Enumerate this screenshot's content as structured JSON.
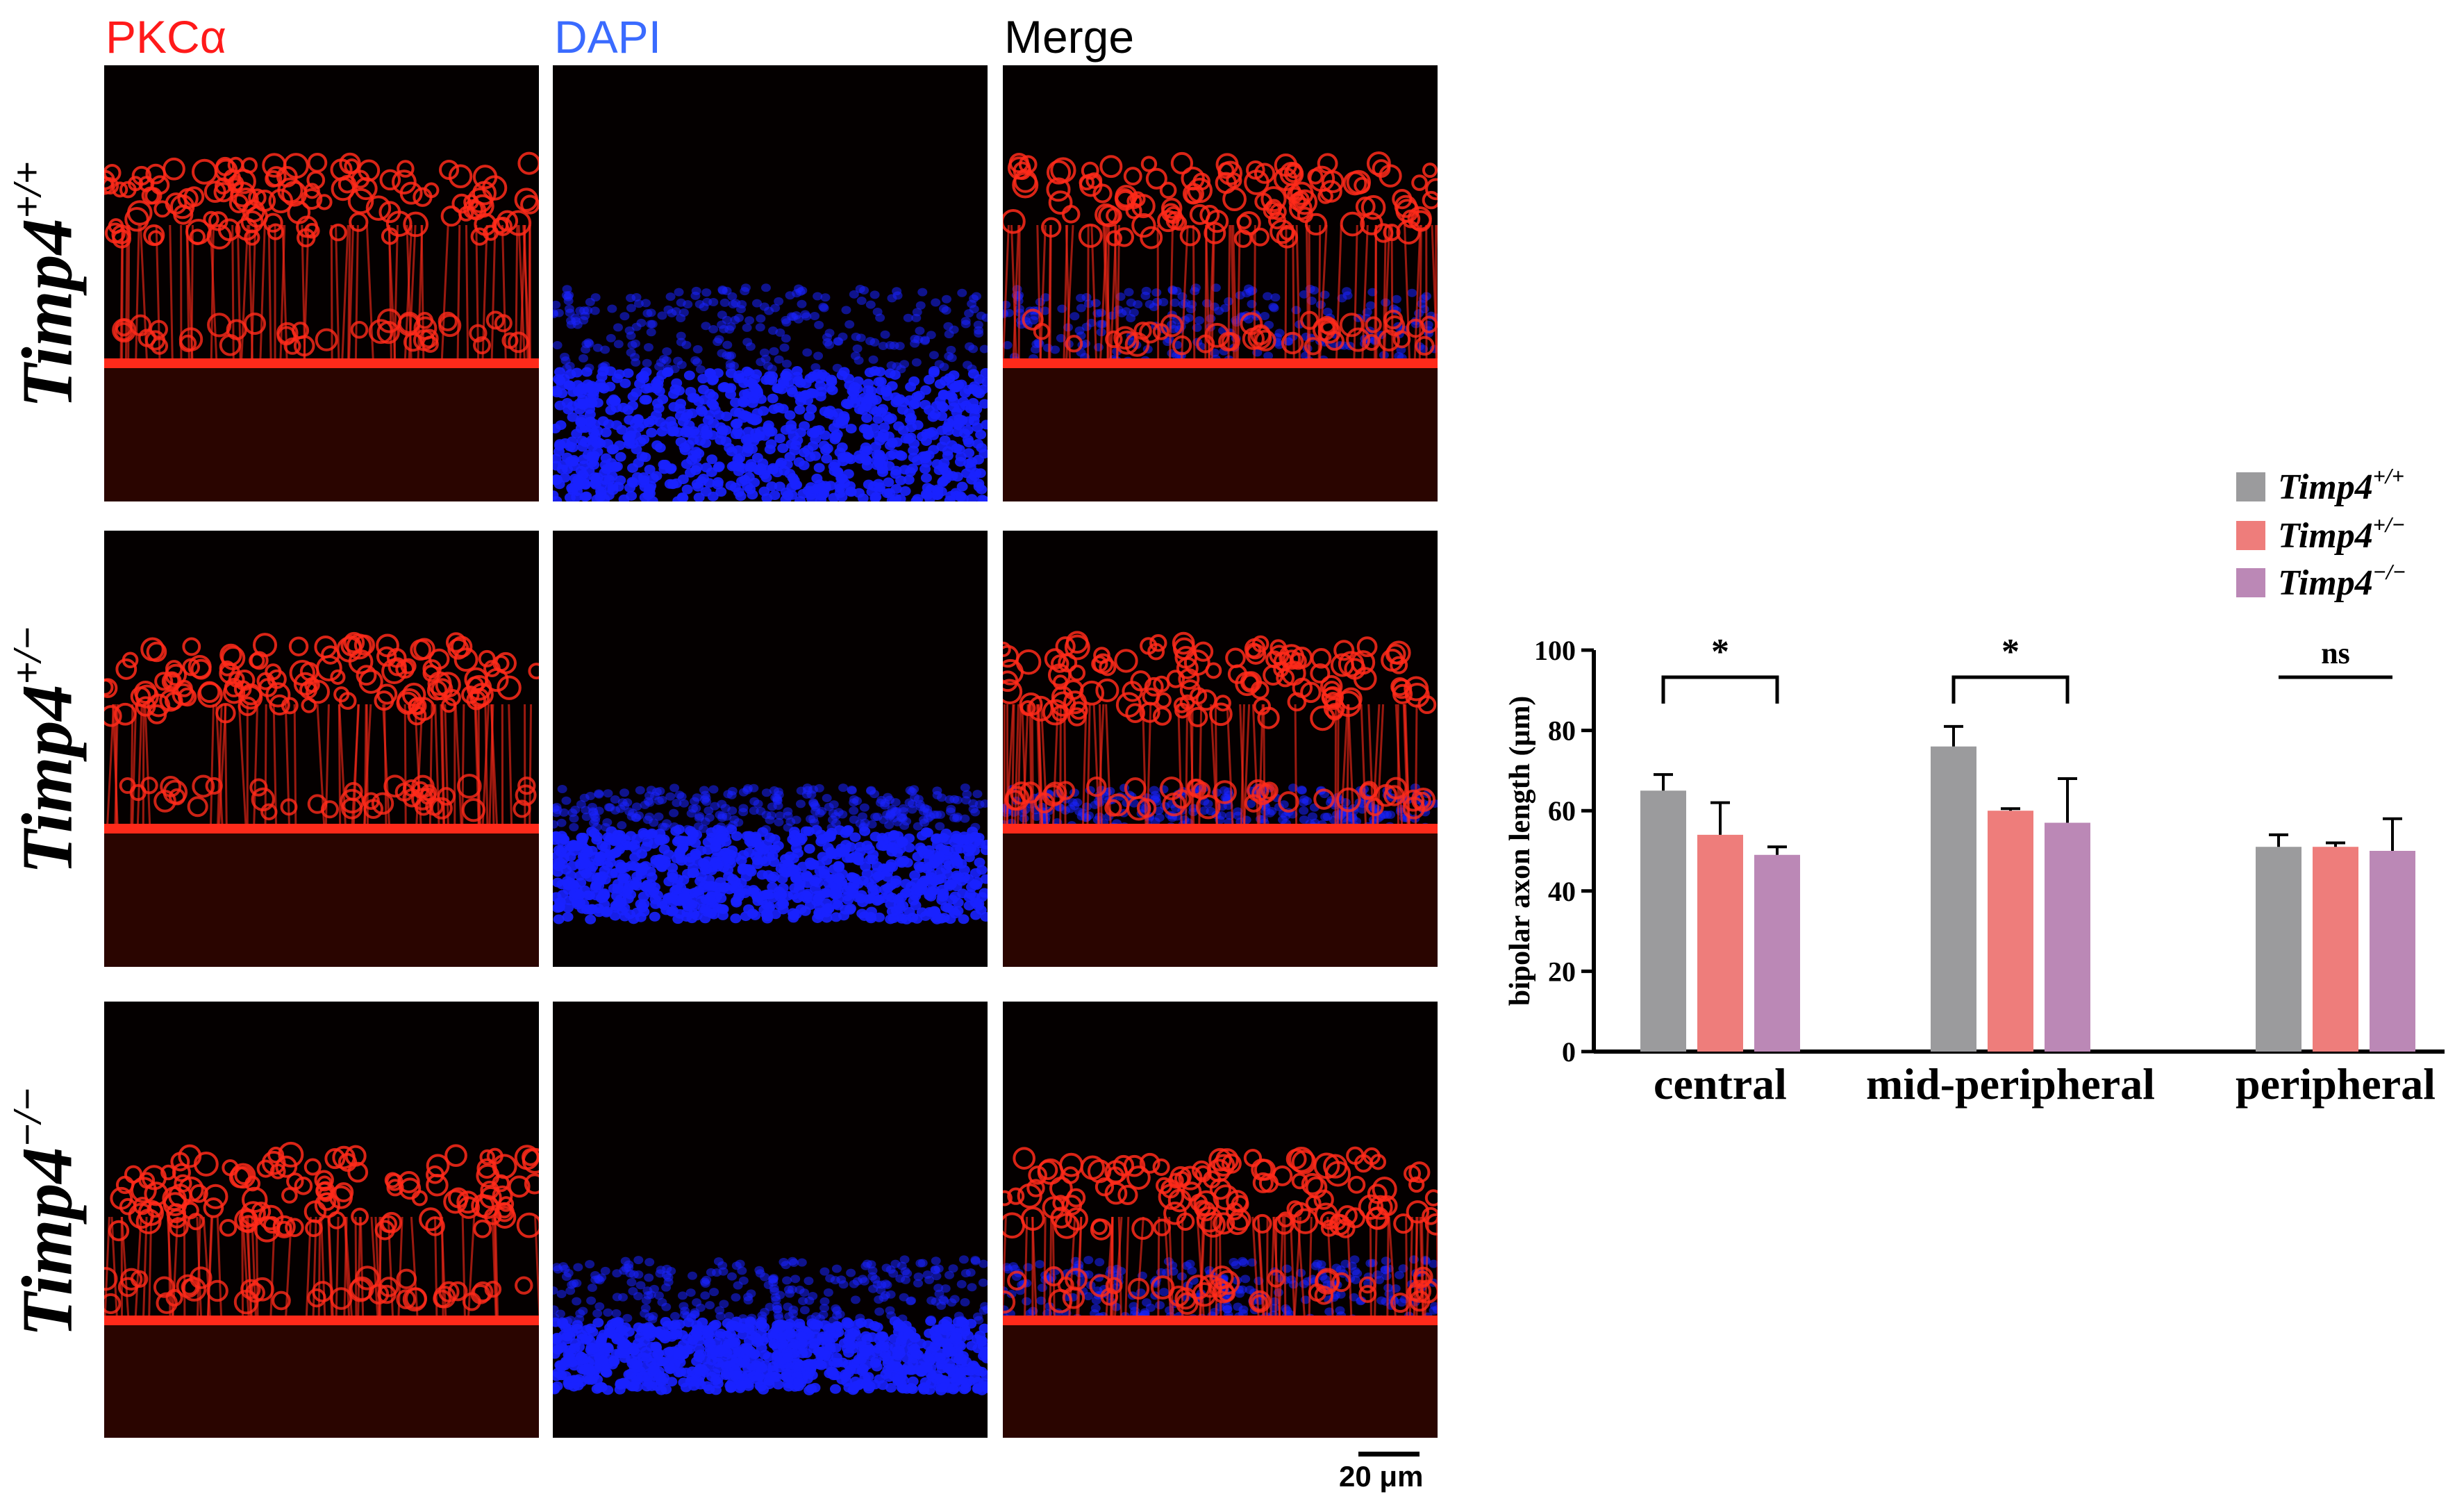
{
  "figure": {
    "column_headers": [
      {
        "text": "PKCα",
        "color": "#ff1a1a"
      },
      {
        "text": "DAPI",
        "color": "#3a6bff"
      },
      {
        "text": "Merge",
        "color": "#000000"
      }
    ],
    "rows": [
      {
        "gene": "Timp4",
        "genotype": "+/+"
      },
      {
        "gene": "Timp4",
        "genotype": "+/−"
      },
      {
        "gene": "Timp4",
        "genotype": "−/−"
      }
    ],
    "scale_bar_label": "20 μm",
    "colors": {
      "pkc": "#ff2a1a",
      "dapi": "#1a22ff",
      "panel_bg": "#040000"
    }
  },
  "chart_data": {
    "type": "bar",
    "ylabel": "bipolar axon length (μm)",
    "xlabel": "",
    "ylim": [
      0,
      100
    ],
    "yticks": [
      "0",
      "20",
      "40",
      "60",
      "80",
      "100"
    ],
    "categories": [
      "central",
      "mid-peripheral",
      "peripheral"
    ],
    "series": [
      {
        "name": "Timp4",
        "sup": "+/+",
        "color": "#9b9b9d",
        "values": [
          65,
          76,
          51
        ],
        "errors": [
          4,
          5,
          3
        ]
      },
      {
        "name": "Timp4",
        "sup": "+/−",
        "color": "#ee7d7b",
        "values": [
          54,
          60,
          51
        ],
        "errors": [
          8,
          0.5,
          1
        ]
      },
      {
        "name": "Timp4",
        "sup": "−/−",
        "color": "#bb88b6",
        "values": [
          49,
          57,
          50
        ],
        "errors": [
          2,
          11,
          8
        ]
      }
    ],
    "significance": [
      "*",
      "*",
      "ns"
    ],
    "legend_position": "top-right",
    "grid": false
  }
}
